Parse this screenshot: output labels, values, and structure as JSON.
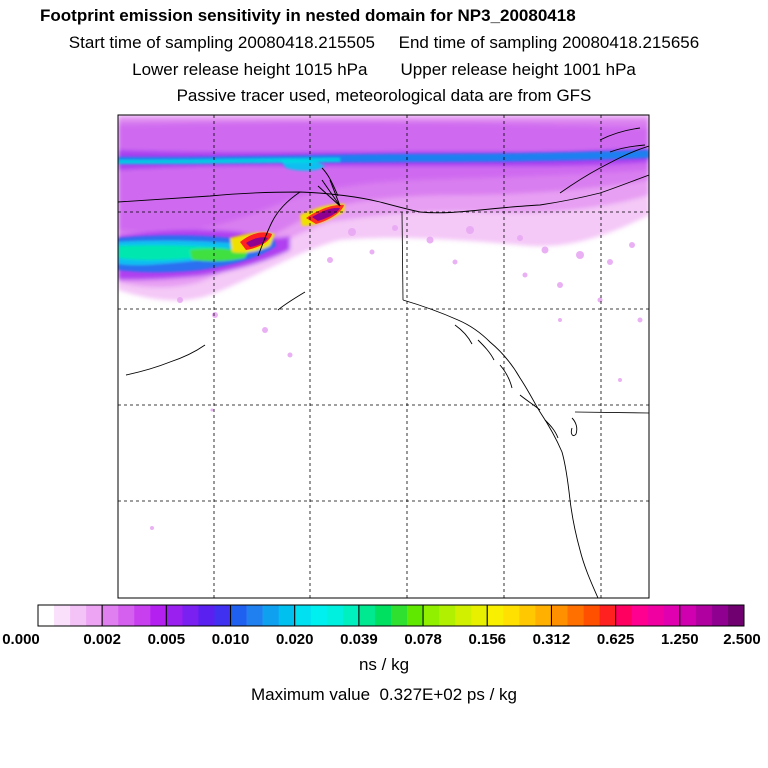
{
  "header": {
    "title": "Footprint emission sensitivity in nested domain for NP3_20080418",
    "start_time": "Start time of sampling 20080418.215505",
    "end_time": "End time of sampling 20080418.215656",
    "lower_height": "Lower release height 1015 hPa",
    "upper_height": "Upper release height 1001 hPa",
    "tracer_note": "Passive tracer used, meteorological data are from GFS"
  },
  "colorbar": {
    "tick_labels": [
      "0.000",
      "0.002",
      "0.005",
      "0.010",
      "0.020",
      "0.039",
      "0.078",
      "0.156",
      "0.312",
      "0.625",
      "1.250",
      "2.500"
    ],
    "segment_colors": [
      [
        "#ffffff",
        "#fae0fb",
        "#f3c2f7",
        "#eca4f3"
      ],
      [
        "#e080f0",
        "#d560f0",
        "#c83ff0",
        "#b420f0"
      ],
      [
        "#9a20f0",
        "#7a20f0",
        "#5a20f0",
        "#4030f0"
      ],
      [
        "#2060f0",
        "#2080f0",
        "#10a0f0",
        "#00c0f0"
      ],
      [
        "#00e0f0",
        "#00f0f0",
        "#00f0e0",
        "#00f0c0"
      ],
      [
        "#00e890",
        "#00e060",
        "#30e030",
        "#60e800"
      ],
      [
        "#90f000",
        "#b0f000",
        "#d0f000",
        "#e8f000"
      ],
      [
        "#f8f000",
        "#ffe000",
        "#ffc800",
        "#ffb000"
      ],
      [
        "#ff9000",
        "#ff7000",
        "#ff5000",
        "#ff2020"
      ],
      [
        "#ff0060",
        "#ff0090",
        "#f000a0",
        "#e000b0"
      ],
      [
        "#d000b0",
        "#b000a0",
        "#900090",
        "#700070"
      ]
    ],
    "units": "ns / kg"
  },
  "max_value": "Maximum value  0.327E+02 ps / kg"
}
